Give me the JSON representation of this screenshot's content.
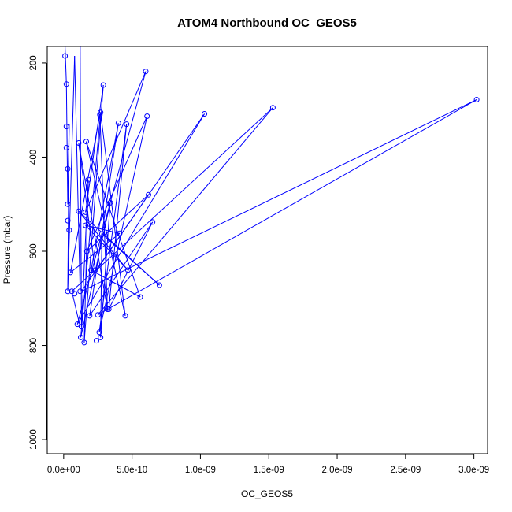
{
  "chart_data": {
    "type": "line",
    "title": "ATOM4 Northbound OC_GEOS5",
    "xlabel": "OC_GEOS5",
    "ylabel": "Pressure (mbar)",
    "xlim": [
      -1.2e-10,
      3.1e-09
    ],
    "ylim": [
      1030,
      165
    ],
    "y_reversed": true,
    "grid": false,
    "legend": "none",
    "series_color": "#0000ff",
    "marker": "open-circle",
    "x_ticks": [
      0,
      5e-10,
      1e-09,
      1.5e-09,
      2e-09,
      2.5e-09,
      3e-09
    ],
    "x_tick_labels": [
      "0.0e+00",
      "5.0e-10",
      "1.0e-09",
      "1.5e-09",
      "2.0e-09",
      "2.5e-09",
      "3.0e-09"
    ],
    "y_ticks": [
      200,
      400,
      600,
      800,
      1000
    ],
    "y_tick_labels": [
      "200",
      "400",
      "600",
      "800",
      "1000"
    ],
    "points": [
      {
        "x": 1e-11,
        "y": 185
      },
      {
        "x": 2e-11,
        "y": 245
      },
      {
        "x": 2e-11,
        "y": 335
      },
      {
        "x": 2e-11,
        "y": 380
      },
      {
        "x": 3e-11,
        "y": 425
      },
      {
        "x": 3e-11,
        "y": 500
      },
      {
        "x": 3e-11,
        "y": 535
      },
      {
        "x": 4e-11,
        "y": 555
      },
      {
        "x": 3e-11,
        "y": 685
      },
      {
        "x": 5e-11,
        "y": 645
      },
      {
        "x": 6e-11,
        "y": 685
      },
      {
        "x": 8e-11,
        "y": 690
      },
      {
        "x": 1e-10,
        "y": 755
      },
      {
        "x": 1.1e-10,
        "y": 370
      },
      {
        "x": 1.1e-10,
        "y": 515
      },
      {
        "x": 1.2e-10,
        "y": 685
      },
      {
        "x": 1.3e-10,
        "y": 760
      },
      {
        "x": 1.25e-10,
        "y": 783
      },
      {
        "x": 1.5e-10,
        "y": 794
      },
      {
        "x": 1.6e-10,
        "y": 545
      },
      {
        "x": 1.7e-10,
        "y": 600
      },
      {
        "x": 1.8e-10,
        "y": 448
      },
      {
        "x": 1.6e-10,
        "y": 517
      },
      {
        "x": 1.65e-10,
        "y": 367
      },
      {
        "x": 1.9e-10,
        "y": 737
      },
      {
        "x": 2e-10,
        "y": 640
      },
      {
        "x": 2.3e-10,
        "y": 640
      },
      {
        "x": 2.4e-10,
        "y": 790
      },
      {
        "x": 2.5e-10,
        "y": 735
      },
      {
        "x": 2.6e-10,
        "y": 772
      },
      {
        "x": 2.7e-10,
        "y": 783
      },
      {
        "x": 2.65e-10,
        "y": 310
      },
      {
        "x": 2.7e-10,
        "y": 305
      },
      {
        "x": 2.8e-10,
        "y": 563
      },
      {
        "x": 2.9e-10,
        "y": 247
      },
      {
        "x": 3.2e-10,
        "y": 723
      },
      {
        "x": 3.4e-10,
        "y": 497
      },
      {
        "x": 3.3e-10,
        "y": 723
      },
      {
        "x": 4e-10,
        "y": 328
      },
      {
        "x": 4.1e-10,
        "y": 562
      },
      {
        "x": 4.5e-10,
        "y": 737
      },
      {
        "x": 4.6e-10,
        "y": 330
      },
      {
        "x": 4.7e-10,
        "y": 640
      },
      {
        "x": 5.6e-10,
        "y": 697
      },
      {
        "x": 6e-10,
        "y": 218
      },
      {
        "x": 6.1e-10,
        "y": 313
      },
      {
        "x": 6.2e-10,
        "y": 480
      },
      {
        "x": 6.5e-10,
        "y": 538
      },
      {
        "x": 7e-10,
        "y": 672
      },
      {
        "x": 1.03e-09,
        "y": 308
      },
      {
        "x": 1.53e-09,
        "y": 295
      },
      {
        "x": 3.02e-09,
        "y": 278
      }
    ],
    "path": [
      {
        "x": 1e-11,
        "y": 165
      },
      {
        "x": 2e-11,
        "y": 245
      },
      {
        "x": 3e-11,
        "y": 500
      },
      {
        "x": 4e-11,
        "y": 330
      },
      {
        "x": 3e-11,
        "y": 685
      },
      {
        "x": 8e-11,
        "y": 185
      },
      {
        "x": 1.2e-10,
        "y": 685
      },
      {
        "x": 1.2e-10,
        "y": 165
      },
      {
        "x": 1.3e-10,
        "y": 760
      },
      {
        "x": 1.8e-10,
        "y": 448
      },
      {
        "x": 1.5e-10,
        "y": 794
      },
      {
        "x": 2.9e-10,
        "y": 247
      },
      {
        "x": 1.6e-10,
        "y": 517
      },
      {
        "x": 6e-10,
        "y": 218
      },
      {
        "x": 1e-10,
        "y": 755
      },
      {
        "x": 1.03e-09,
        "y": 308
      },
      {
        "x": 2.4e-10,
        "y": 640
      },
      {
        "x": 1.53e-09,
        "y": 295
      },
      {
        "x": 2.5e-10,
        "y": 735
      },
      {
        "x": 3.02e-09,
        "y": 278
      },
      {
        "x": 1.3e-10,
        "y": 685
      },
      {
        "x": 6.2e-10,
        "y": 480
      },
      {
        "x": 1.7e-10,
        "y": 600
      },
      {
        "x": 6.1e-10,
        "y": 313
      },
      {
        "x": 2.6e-10,
        "y": 772
      },
      {
        "x": 4.6e-10,
        "y": 330
      },
      {
        "x": 3.3e-10,
        "y": 723
      },
      {
        "x": 6.5e-10,
        "y": 538
      },
      {
        "x": 1.9e-10,
        "y": 737
      },
      {
        "x": 4e-10,
        "y": 328
      },
      {
        "x": 2e-10,
        "y": 640
      },
      {
        "x": 5.6e-10,
        "y": 697
      },
      {
        "x": 1.65e-10,
        "y": 367
      },
      {
        "x": 4.5e-10,
        "y": 737
      },
      {
        "x": 2.7e-10,
        "y": 305
      },
      {
        "x": 1.25e-10,
        "y": 783
      },
      {
        "x": 3.4e-10,
        "y": 497
      },
      {
        "x": 2.7e-10,
        "y": 783
      },
      {
        "x": 2.8e-10,
        "y": 563
      },
      {
        "x": 7e-10,
        "y": 672
      },
      {
        "x": 1.1e-10,
        "y": 515
      },
      {
        "x": 4.7e-10,
        "y": 640
      },
      {
        "x": 1.6e-10,
        "y": 545
      },
      {
        "x": 4.1e-10,
        "y": 562
      },
      {
        "x": 5e-11,
        "y": 645
      },
      {
        "x": 2.65e-10,
        "y": 310
      },
      {
        "x": 3.2e-10,
        "y": 723
      },
      {
        "x": 1.1e-10,
        "y": 370
      },
      {
        "x": 2.3e-10,
        "y": 640
      },
      {
        "x": 6e-11,
        "y": 685
      },
      {
        "x": 1.2e-10,
        "y": 760
      }
    ]
  }
}
